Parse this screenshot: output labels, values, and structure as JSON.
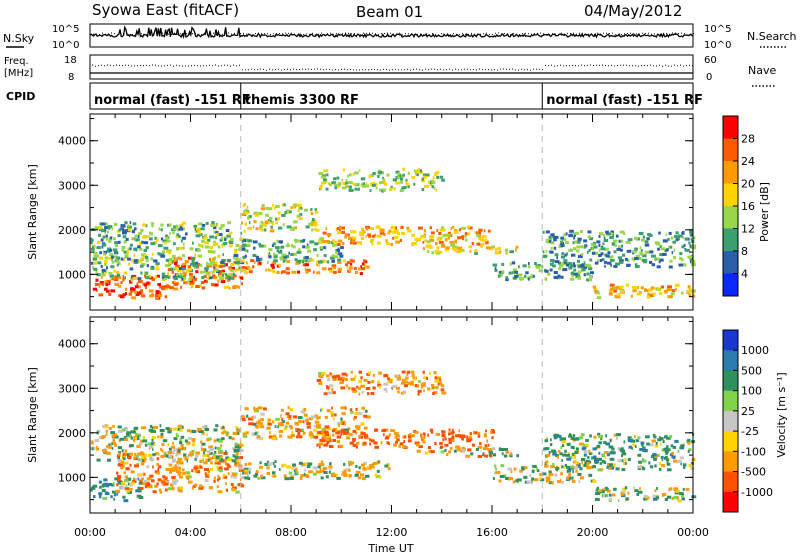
{
  "header": {
    "station": "Syowa East (fitACF)",
    "beam": "Beam 01",
    "date": "04/May/2012"
  },
  "side_labels": {
    "nsky": "N.Sky",
    "nsearch": "N.Search",
    "freq_line1": "Freq.",
    "freq_line2": "[MHz]",
    "nave": "Nave",
    "cpid": "CPID"
  },
  "noise_panel": {
    "left_ticks": [
      "10^5",
      "10^0"
    ],
    "right_ticks": [
      "10^5",
      "10^0"
    ]
  },
  "freq_panel": {
    "left_ticks": [
      "18",
      "8"
    ],
    "right_ticks": [
      "60",
      "0"
    ]
  },
  "cpid_segments": [
    {
      "label": "normal (fast) -151 RF",
      "start_hour": 0,
      "end_hour": 6
    },
    {
      "label": "themis 3300 RF",
      "start_hour": 6,
      "end_hour": 18
    },
    {
      "label": "normal (fast) -151 RF",
      "start_hour": 18,
      "end_hour": 24
    }
  ],
  "power_bar": {
    "label": "Power [dB]",
    "ticks": [
      "28",
      "24",
      "20",
      "16",
      "12",
      "8",
      "4"
    ],
    "colors": [
      "#ff0000",
      "#ff5a00",
      "#ff9a00",
      "#ffd300",
      "#99d64a",
      "#3c9f6e",
      "#2a5ea8",
      "#0a28ff"
    ]
  },
  "velocity_bar": {
    "label": "Velocity [m s⁻¹]",
    "ticks": [
      "1000",
      "500",
      "100",
      "25",
      "-25",
      "-100",
      "-500",
      "-1000"
    ],
    "colors": [
      "#1a37d0",
      "#2b7cab",
      "#2f8f5f",
      "#7fd24a",
      "#c6c6c6",
      "#ffd300",
      "#ff9a00",
      "#ff5000",
      "#ff0000"
    ]
  },
  "chart_data": [
    {
      "type": "heatmap",
      "panel": "power",
      "xlabel": "",
      "ylabel": "Slant Range [km]",
      "xlim": [
        0,
        24
      ],
      "ylim": [
        200,
        4600
      ],
      "yticks": [
        "1000",
        "2000",
        "3000",
        "4000"
      ],
      "colorbar": "Power [dB]",
      "bands": [
        {
          "start": 0,
          "end": 3,
          "ylow": 500,
          "yhigh": 1000,
          "value": 24
        },
        {
          "start": 3,
          "end": 6,
          "ylow": 700,
          "yhigh": 1400,
          "value": 22
        },
        {
          "start": 0,
          "end": 6,
          "ylow": 900,
          "yhigh": 2200,
          "value": 10
        },
        {
          "start": 6,
          "end": 11,
          "ylow": 1050,
          "yhigh": 1350,
          "value": 22
        },
        {
          "start": 6,
          "end": 10,
          "ylow": 1300,
          "yhigh": 1800,
          "value": 8
        },
        {
          "start": 6,
          "end": 9,
          "ylow": 2000,
          "yhigh": 2600,
          "value": 14
        },
        {
          "start": 9,
          "end": 16,
          "ylow": 1700,
          "yhigh": 2100,
          "value": 19
        },
        {
          "start": 13,
          "end": 17,
          "ylow": 1500,
          "yhigh": 1700,
          "value": 15
        },
        {
          "start": 9,
          "end": 14,
          "ylow": 2900,
          "yhigh": 3400,
          "value": 12
        },
        {
          "start": 16,
          "end": 20,
          "ylow": 900,
          "yhigh": 1300,
          "value": 8
        },
        {
          "start": 20,
          "end": 24,
          "ylow": 500,
          "yhigh": 800,
          "value": 18
        },
        {
          "start": 18,
          "end": 24,
          "ylow": 1200,
          "yhigh": 2000,
          "value": 8
        }
      ]
    },
    {
      "type": "heatmap",
      "panel": "velocity",
      "xlabel": "Time UT",
      "ylabel": "Slant Range [km]",
      "xlim": [
        0,
        24
      ],
      "ylim": [
        200,
        4600
      ],
      "xticks": [
        "00:00",
        "04:00",
        "08:00",
        "12:00",
        "16:00",
        "20:00",
        "00:00"
      ],
      "yticks": [
        "1000",
        "2000",
        "3000",
        "4000"
      ],
      "colorbar": "Velocity [m s⁻¹]",
      "bands": [
        {
          "start": 0,
          "end": 2,
          "ylow": 500,
          "yhigh": 1000,
          "value": 300
        },
        {
          "start": 1,
          "end": 6,
          "ylow": 700,
          "yhigh": 1600,
          "value": -200
        },
        {
          "start": 0,
          "end": 6,
          "ylow": 1400,
          "yhigh": 2200,
          "value": 50
        },
        {
          "start": 6,
          "end": 12,
          "ylow": 1000,
          "yhigh": 1400,
          "value": 0
        },
        {
          "start": 6,
          "end": 11,
          "ylow": 1900,
          "yhigh": 2600,
          "value": -150
        },
        {
          "start": 9,
          "end": 16,
          "ylow": 1700,
          "yhigh": 2100,
          "value": -400
        },
        {
          "start": 13,
          "end": 17,
          "ylow": 1500,
          "yhigh": 1700,
          "value": -80
        },
        {
          "start": 9,
          "end": 14,
          "ylow": 2900,
          "yhigh": 3400,
          "value": -200
        },
        {
          "start": 16,
          "end": 20,
          "ylow": 900,
          "yhigh": 1300,
          "value": 60
        },
        {
          "start": 20,
          "end": 24,
          "ylow": 500,
          "yhigh": 800,
          "value": 80
        },
        {
          "start": 18,
          "end": 24,
          "ylow": 1200,
          "yhigh": 2000,
          "value": 120
        }
      ]
    }
  ]
}
